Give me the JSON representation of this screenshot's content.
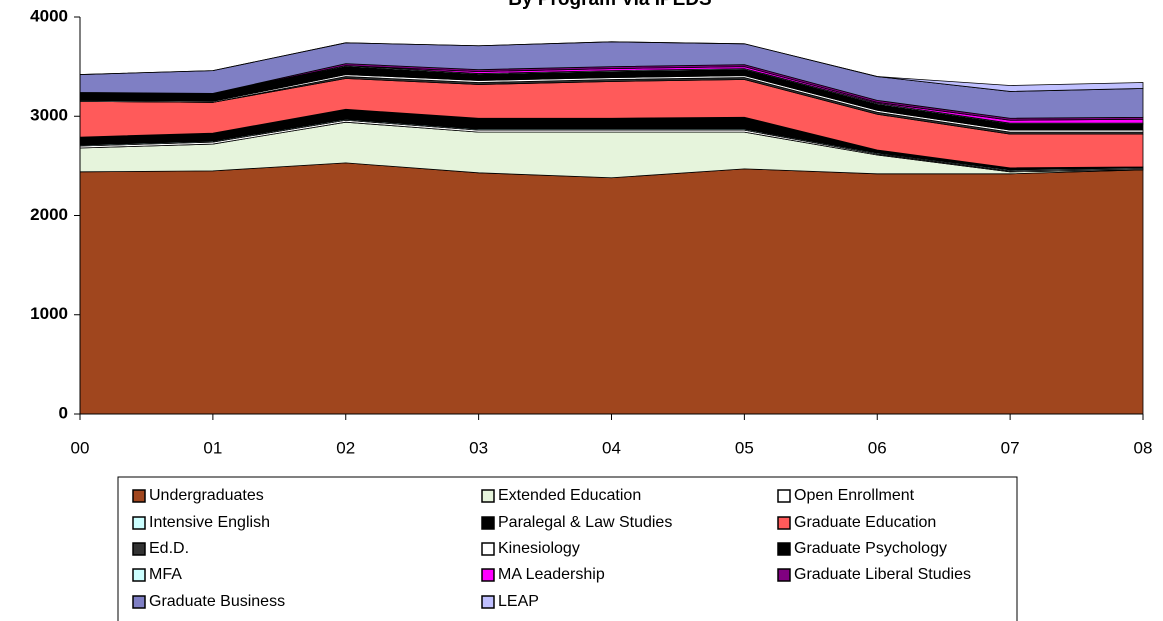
{
  "chart_data": {
    "type": "stacked_area",
    "title": "By Program Via IPEDS",
    "categories": [
      "00",
      "01",
      "02",
      "03",
      "04",
      "05",
      "06",
      "07",
      "08"
    ],
    "ylim": [
      0,
      4000
    ],
    "yticks": [
      0,
      1000,
      2000,
      3000,
      4000
    ],
    "grid": false,
    "legend": "bottom",
    "series": [
      {
        "name": "Undergraduates",
        "color": "#a0461e",
        "values": [
          2440,
          2450,
          2530,
          2430,
          2380,
          2470,
          2420,
          2420,
          2460
        ]
      },
      {
        "name": "Extended Education",
        "color": "#e6f4dc",
        "values": [
          240,
          270,
          410,
          410,
          460,
          370,
          190,
          20,
          0
        ]
      },
      {
        "name": "Open Enrollment",
        "color": "#ffffff",
        "values": [
          20,
          20,
          20,
          20,
          20,
          20,
          10,
          10,
          10
        ]
      },
      {
        "name": "Intensive English",
        "color": "#ccffff",
        "values": [
          10,
          10,
          10,
          10,
          10,
          10,
          10,
          10,
          10
        ]
      },
      {
        "name": "Paralegal & Law Studies",
        "color": "#000000",
        "values": [
          80,
          80,
          100,
          110,
          110,
          120,
          30,
          20,
          10
        ]
      },
      {
        "name": "Graduate Education",
        "color": "#ff5a5a",
        "values": [
          360,
          310,
          310,
          340,
          370,
          380,
          360,
          340,
          330
        ]
      },
      {
        "name": "Ed.D.",
        "color": "#333333",
        "values": [
          0,
          0,
          20,
          20,
          20,
          20,
          20,
          20,
          20
        ]
      },
      {
        "name": "Kinesiology",
        "color": "#ffffff",
        "values": [
          10,
          10,
          20,
          20,
          20,
          20,
          20,
          20,
          20
        ]
      },
      {
        "name": "Graduate Psychology",
        "color": "#000000",
        "values": [
          80,
          80,
          80,
          60,
          60,
          60,
          60,
          60,
          60
        ]
      },
      {
        "name": "MFA",
        "color": "#ccffff",
        "values": [
          0,
          0,
          10,
          10,
          10,
          10,
          10,
          10,
          10
        ]
      },
      {
        "name": "MA Leadership",
        "color": "#ff00ff",
        "values": [
          0,
          0,
          0,
          20,
          20,
          20,
          10,
          30,
          40
        ]
      },
      {
        "name": "Graduate Liberal Studies",
        "color": "#800080",
        "values": [
          0,
          0,
          20,
          20,
          20,
          20,
          20,
          20,
          20
        ]
      },
      {
        "name": "Graduate Business",
        "color": "#7f7fc4",
        "values": [
          180,
          230,
          210,
          240,
          250,
          210,
          240,
          270,
          290
        ]
      },
      {
        "name": "LEAP",
        "color": "#c0c0ff",
        "values": [
          0,
          0,
          0,
          0,
          0,
          0,
          0,
          60,
          60
        ]
      }
    ]
  }
}
